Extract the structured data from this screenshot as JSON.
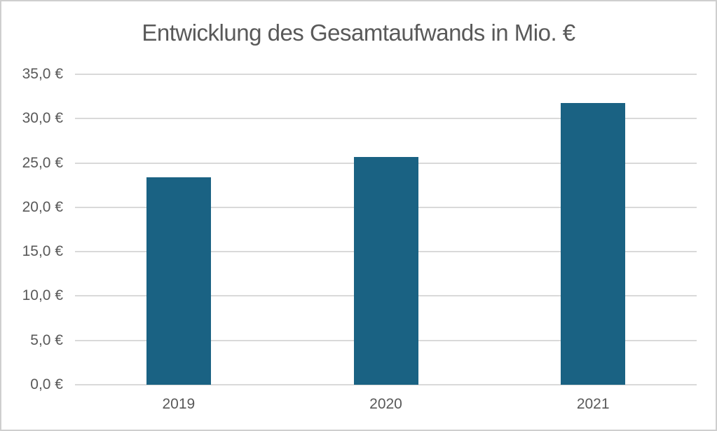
{
  "window": {
    "background_color": "#ffffff",
    "border_color": "#cfcfcf"
  },
  "chart_data": {
    "type": "bar",
    "title": "Entwicklung des Gesamtaufwands in Mio. €",
    "categories": [
      "2019",
      "2020",
      "2021"
    ],
    "values": [
      23.4,
      25.7,
      31.8
    ],
    "unit": "Mio. €",
    "xlabel": "",
    "ylabel": "",
    "ylim": [
      0,
      35
    ],
    "ytick_step": 5,
    "ytick_labels_top_to_bottom": [
      "35,0 €",
      "30,0 €",
      "25,0 €",
      "20,0 €",
      "15,0 €",
      "10,0 €",
      "5,0 €",
      "0,0 €"
    ],
    "grid": true,
    "legend_position": "none",
    "bar_color": "#1a6283",
    "text_color": "#595959",
    "gridline_color": "#d9d9d9"
  }
}
